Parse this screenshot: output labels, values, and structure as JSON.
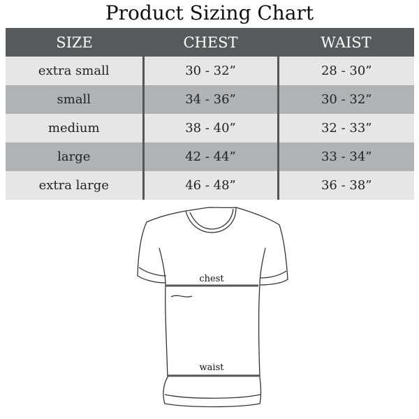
{
  "title": "Product Sizing Chart",
  "table": {
    "headers": [
      "SIZE",
      "CHEST",
      "WAIST"
    ],
    "rows": [
      [
        "extra small",
        "30 - 32”",
        "28 - 30”"
      ],
      [
        "small",
        "34 - 36”",
        "30 - 32”"
      ],
      [
        "medium",
        "38 - 40”",
        "32 - 33”"
      ],
      [
        "large",
        "42 - 44”",
        "33 - 34”"
      ],
      [
        "extra large",
        "46 - 48”",
        "36 - 38”"
      ]
    ]
  },
  "diagram": {
    "chest_label": "chest",
    "waist_label": "waist"
  },
  "colors": {
    "header": "#58595b",
    "row_light": "#e6e6e7",
    "row_dark": "#b1b2b4"
  }
}
